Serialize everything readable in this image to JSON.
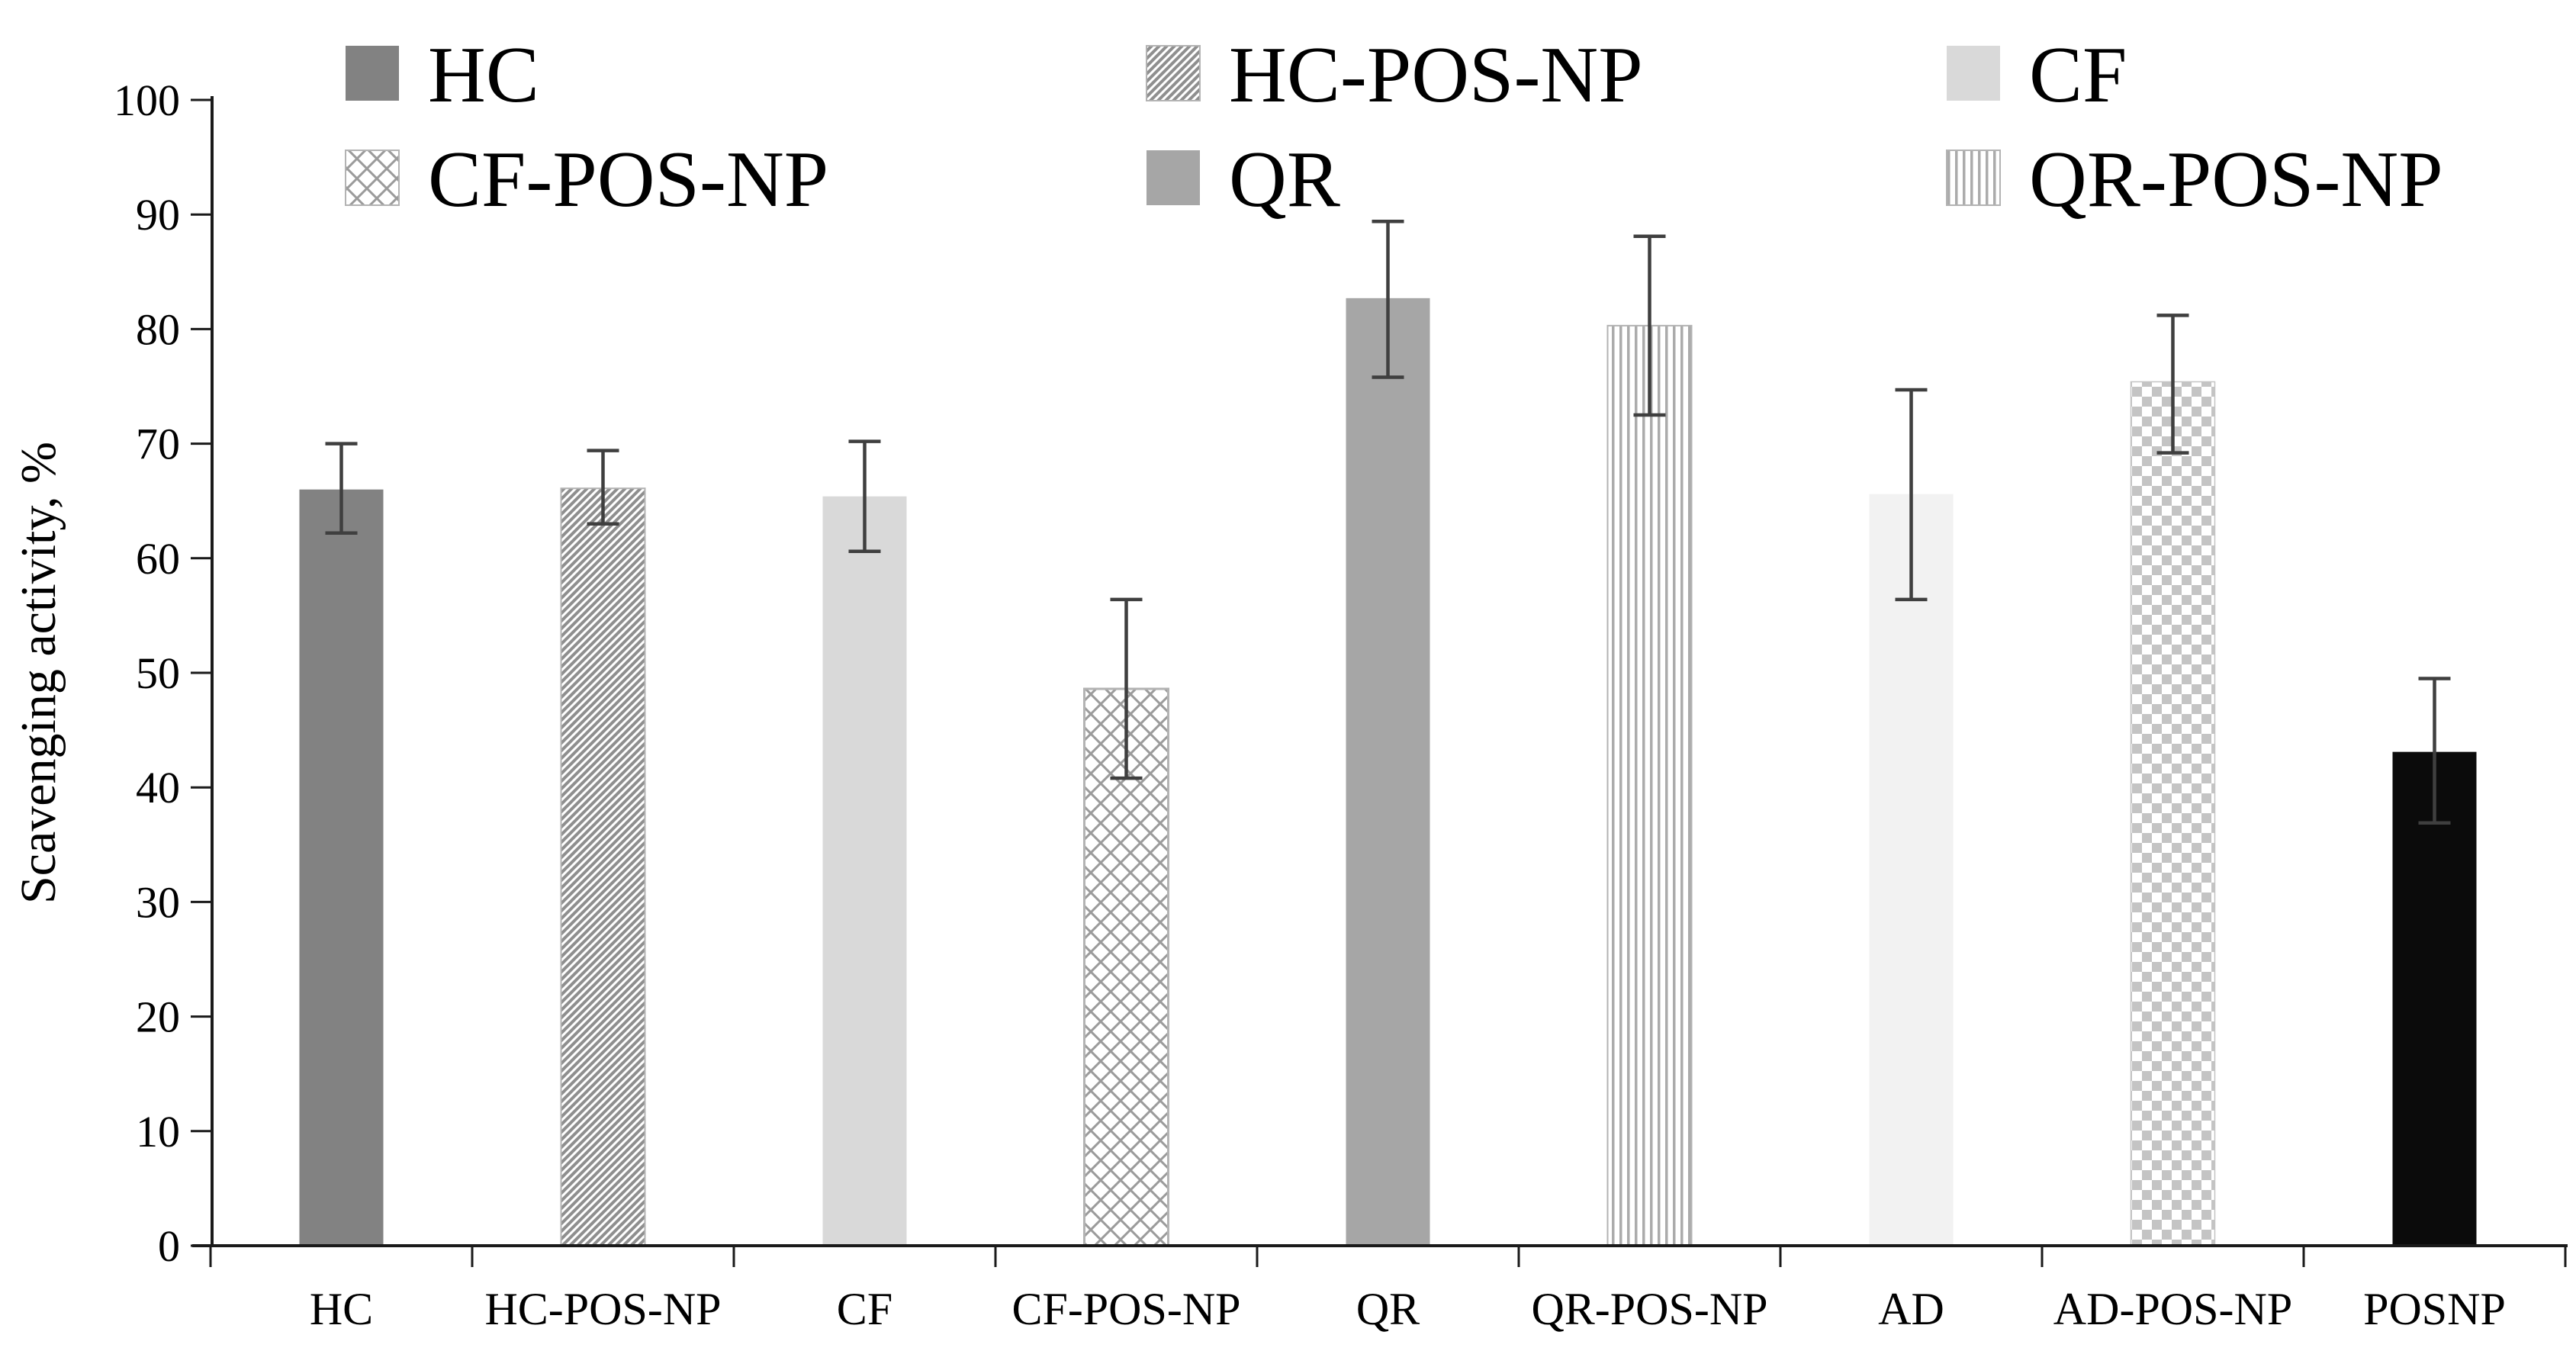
{
  "chart_data": {
    "type": "bar",
    "title": "",
    "xlabel": "",
    "ylabel": "Scavenging activity, %",
    "ylim": [
      0,
      100
    ],
    "ytick_step": 10,
    "ytick_labels": [
      "0",
      "10",
      "20",
      "30",
      "40",
      "50",
      "60",
      "70",
      "80",
      "90",
      "100"
    ],
    "grid": false,
    "legend_position": "top",
    "categories": [
      "HC",
      "HC-POS-NP",
      "CF",
      "CF-POS-NP",
      "QR",
      "QR-POS-NP",
      "AD",
      "AD-POS-NP",
      "POSNP"
    ],
    "values": [
      66.0,
      66.1,
      65.4,
      48.6,
      82.7,
      80.3,
      65.6,
      75.4,
      43.1
    ],
    "error_plus": [
      4.0,
      3.3,
      4.8,
      7.8,
      6.7,
      7.8,
      9.1,
      5.8,
      6.4
    ],
    "error_minus": [
      3.8,
      3.1,
      4.8,
      7.8,
      6.9,
      7.8,
      9.2,
      6.2,
      6.2
    ],
    "bar_styles": [
      "solid-gray",
      "diag-hatch",
      "solid-lightgray",
      "diamond-lattice",
      "solid-midgray",
      "vert-stripes",
      "solid-palegray",
      "checkerboard",
      "solid-black"
    ],
    "legend": [
      {
        "label": "HC",
        "style": "solid-gray"
      },
      {
        "label": "HC-POS-NP",
        "style": "diag-hatch"
      },
      {
        "label": "CF",
        "style": "solid-lightgray"
      },
      {
        "label": "CF-POS-NP",
        "style": "diamond-lattice"
      },
      {
        "label": "QR",
        "style": "vert-stripes-swatch-qr",
        "style_actual": "solid-midgray"
      },
      {
        "label": "QR-POS-NP",
        "style": "vert-stripes"
      }
    ],
    "colors": {
      "solid_gray": "#828282",
      "solid_midgray": "#a6a6a6",
      "solid_lightgray": "#d9d9d9",
      "solid_palegray": "#f2f2f2",
      "solid_black": "#0b0b0b",
      "hatch_line": "#8f8f8f",
      "lattice_line": "#9b9b9b",
      "stripe_line": "#ababab",
      "checker_square": "#c4c4c4",
      "pattern_border": "#b3b3b3",
      "axis": "#1a1a1a",
      "error_bar": "#3f3f3f",
      "text": "#000000",
      "background": "#ffffff"
    }
  }
}
